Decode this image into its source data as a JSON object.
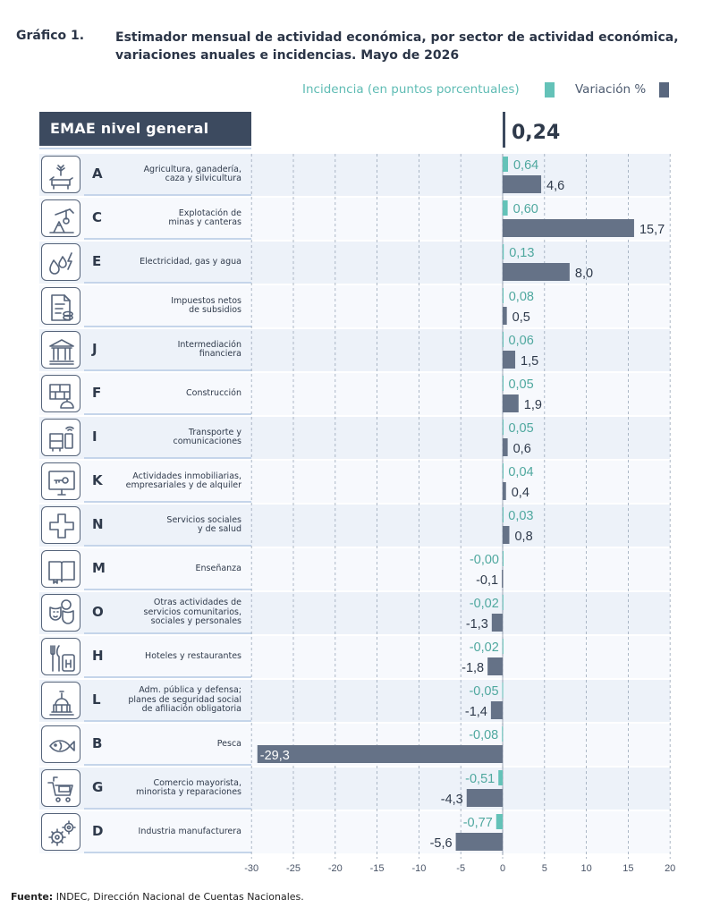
{
  "title": {
    "label": "Gráfico 1.",
    "text": "Estimador mensual de actividad económica, por sector de actividad económica, variaciones anuales e incidencias. Mayo de 2026"
  },
  "legend": {
    "incidence": "Incidencia (en puntos porcentuales)",
    "variation": "Variación %"
  },
  "colors": {
    "incidence": "#64c2b8",
    "variation": "#657287",
    "incidence_text": "#4fa89f",
    "variation_text": "#2f3a4b"
  },
  "header": {
    "label": "EMAE nivel general",
    "value": "0,24"
  },
  "footer": {
    "source_label": "Fuente:",
    "source_text": "INDEC, Dirección Nacional de Cuentas Nacionales."
  },
  "chart_data": {
    "type": "bar",
    "orientation": "horizontal",
    "title": "EMAE nivel general",
    "total_incidence": 0.24,
    "xlim": [
      -30,
      20
    ],
    "xticks": [
      -30,
      -25,
      -20,
      -15,
      -10,
      -5,
      0,
      5,
      10,
      15,
      20
    ],
    "series": [
      {
        "name": "Incidencia (en puntos porcentuales)",
        "values": [
          0.64,
          0.6,
          0.13,
          0.08,
          0.06,
          0.05,
          0.05,
          0.04,
          0.03,
          -0.0,
          -0.02,
          -0.02,
          -0.05,
          -0.08,
          -0.51,
          -0.77
        ],
        "labels": [
          "0,64",
          "0,60",
          "0,13",
          "0,08",
          "0,06",
          "0,05",
          "0,05",
          "0,04",
          "0,03",
          "-0,00",
          "-0,02",
          "-0,02",
          "-0,05",
          "-0,08",
          "-0,51",
          "-0,77"
        ]
      },
      {
        "name": "Variación %",
        "values": [
          4.6,
          15.7,
          8.0,
          0.5,
          1.5,
          1.9,
          0.6,
          0.4,
          0.8,
          -0.1,
          -1.3,
          -1.8,
          -1.4,
          -29.3,
          -4.3,
          -5.6
        ],
        "labels": [
          "4,6",
          "15,7",
          "8,0",
          "0,5",
          "1,5",
          "1,9",
          "0,6",
          "0,4",
          "0,8",
          "-0,1",
          "-1,3",
          "-1,8",
          "-1,4",
          "-29,3",
          "-4,3",
          "-5,6"
        ]
      }
    ],
    "categories": [
      {
        "code": "A",
        "name": "Agricultura, ganadería,\ncaza y silvicultura",
        "icon": "cow-plant-icon"
      },
      {
        "code": "C",
        "name": "Explotación de\nminas y canteras",
        "icon": "oil-pump-icon"
      },
      {
        "code": "E",
        "name": "Electricidad, gas y agua",
        "icon": "water-fire-bolt-icon"
      },
      {
        "code": "",
        "name": "Impuestos netos\nde subsidios",
        "icon": "tax-document-icon"
      },
      {
        "code": "J",
        "name": "Intermediación\nfinanciera",
        "icon": "bank-icon"
      },
      {
        "code": "F",
        "name": "Construcción",
        "icon": "bricks-helmet-icon"
      },
      {
        "code": "I",
        "name": "Transporte y\ncomunicaciones",
        "icon": "bus-phone-icon"
      },
      {
        "code": "K",
        "name": "Actividades inmobiliarias,\nempresariales y de alquiler",
        "icon": "monitor-key-icon"
      },
      {
        "code": "N",
        "name": "Servicios sociales\ny de salud",
        "icon": "health-cross-icon"
      },
      {
        "code": "M",
        "name": "Enseñanza",
        "icon": "book-icon"
      },
      {
        "code": "O",
        "name": "Otras actividades de\nservicios comunitarios,\nsociales y personales",
        "icon": "masks-ball-icon"
      },
      {
        "code": "H",
        "name": "Hoteles y restaurantes",
        "icon": "cutlery-hotel-icon"
      },
      {
        "code": "L",
        "name": "Adm. pública y defensa;\nplanes de seguridad social\nde afiliación obligatoria",
        "icon": "capitol-icon"
      },
      {
        "code": "B",
        "name": "Pesca",
        "icon": "fish-icon"
      },
      {
        "code": "G",
        "name": "Comercio mayorista,\nminorista y reparaciones",
        "icon": "shopping-cart-icon"
      },
      {
        "code": "D",
        "name": "Industria manufacturera",
        "icon": "gears-icon"
      }
    ]
  }
}
